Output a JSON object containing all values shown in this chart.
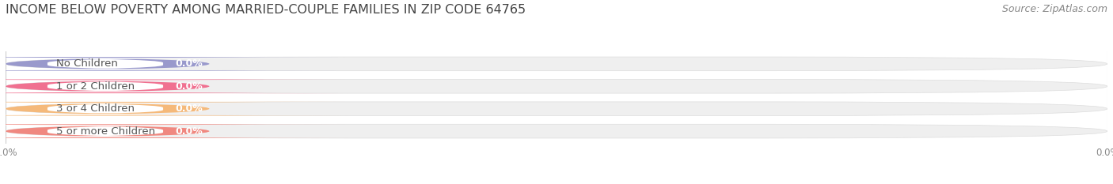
{
  "title": "INCOME BELOW POVERTY AMONG MARRIED-COUPLE FAMILIES IN ZIP CODE 64765",
  "source": "Source: ZipAtlas.com",
  "categories": [
    "No Children",
    "1 or 2 Children",
    "3 or 4 Children",
    "5 or more Children"
  ],
  "values": [
    0.0,
    0.0,
    0.0,
    0.0
  ],
  "bar_colors": [
    "#9999cc",
    "#f07090",
    "#f5b97a",
    "#f08880"
  ],
  "bar_bg_color": "#efefef",
  "background_color": "#ffffff",
  "title_fontsize": 11.5,
  "title_color": "#444444",
  "label_fontsize": 9.5,
  "label_color": "#555555",
  "value_fontsize": 9,
  "source_fontsize": 9,
  "source_color": "#888888"
}
